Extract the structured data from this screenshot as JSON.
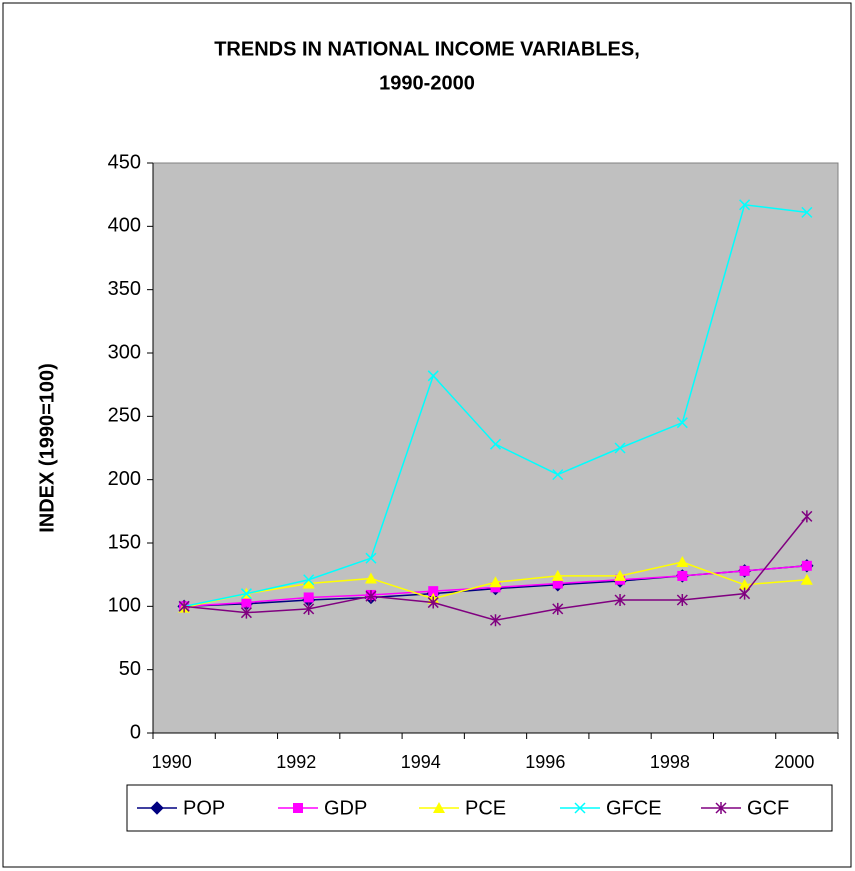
{
  "chart_data": {
    "type": "line",
    "title": [
      "TRENDS IN NATIONAL INCOME VARIABLES,",
      "1990-2000"
    ],
    "y_label": "INDEX (1990=100)",
    "categories": [
      "1990",
      null,
      "1992",
      null,
      "1994",
      null,
      "1996",
      null,
      "1998",
      null,
      "2000"
    ],
    "series": [
      {
        "name": "POP",
        "color": "#000080",
        "marker": "diamond",
        "values": [
          100,
          102,
          105,
          107,
          110,
          114,
          117,
          120,
          124,
          128,
          132
        ]
      },
      {
        "name": "GDP",
        "color": "#FF00FF",
        "marker": "square",
        "values": [
          100,
          103,
          107,
          109,
          112,
          115,
          118,
          121,
          124,
          128,
          132
        ]
      },
      {
        "name": "PCE",
        "color": "#FFFF00",
        "marker": "triangle",
        "values": [
          99,
          110,
          118,
          122,
          106,
          119,
          124,
          124,
          135,
          117,
          121
        ]
      },
      {
        "name": "GFCE",
        "color": "#00FFFF",
        "marker": "x",
        "values": [
          100,
          110,
          121,
          138,
          282,
          228,
          204,
          225,
          245,
          417,
          411
        ]
      },
      {
        "name": "GCF",
        "color": "#800080",
        "marker": "star",
        "values": [
          100,
          95,
          98,
          108,
          103,
          89,
          98,
          105,
          105,
          110,
          171
        ]
      }
    ],
    "ylim": [
      0,
      450
    ],
    "yticks": [
      0,
      50,
      100,
      150,
      200,
      250,
      300,
      350,
      400,
      450
    ],
    "legend": "bottom",
    "plot_background": "#C0C0C0"
  }
}
